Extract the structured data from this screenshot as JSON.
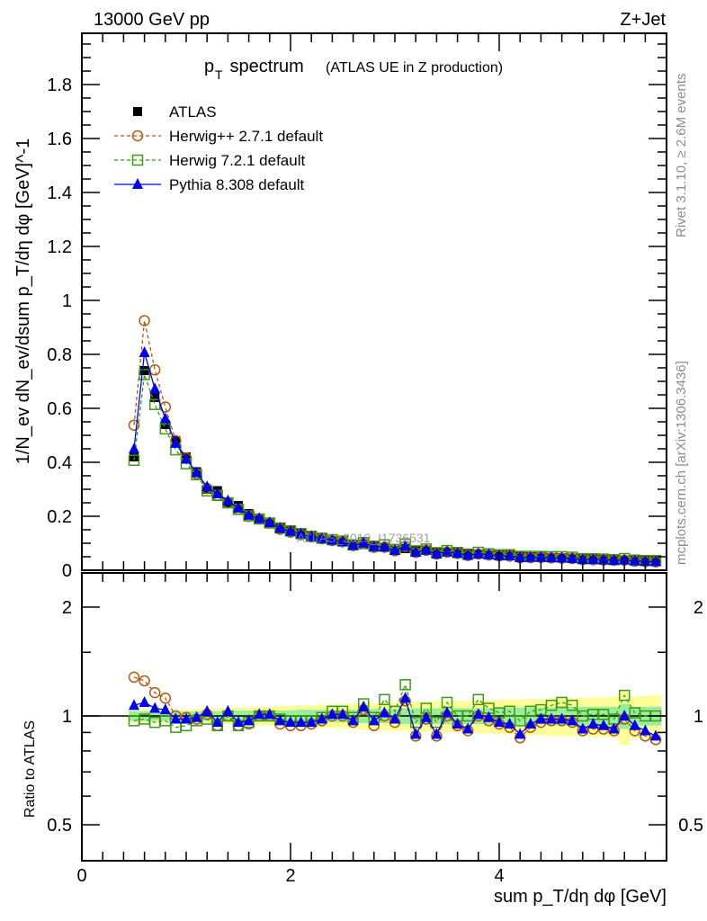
{
  "header": {
    "left": "13000 GeV pp",
    "right": "Z+Jet"
  },
  "side": {
    "rivet": "Rivet 3.1.10, ≥ 2.6M events",
    "mcplots": "mcplots.cern.ch [arXiv:1306.3436]"
  },
  "watermark": "ATLAS_2019_I1736531",
  "chart_data": [
    {
      "type": "scatter",
      "title_main": "p",
      "title_sub": "T",
      "title_rest": " spectrum",
      "title_extra": "(ATLAS UE in Z production)",
      "ylabel": "1/N_ev dN_ev/dsum p_T/dη dφ [GeV]^-1",
      "ylim": [
        0,
        1.99
      ],
      "yticks": [
        "0",
        "0.2",
        "0.4",
        "0.6",
        "0.8",
        "1",
        "1.2",
        "1.4",
        "1.6",
        "1.8"
      ],
      "ytick_values": [
        0,
        0.2,
        0.4,
        0.6,
        0.8,
        1.0,
        1.2,
        1.4,
        1.6,
        1.8
      ],
      "xlim": [
        0,
        5.6
      ],
      "legend": [
        {
          "name": "ATLAS",
          "color": "#000000",
          "marker": "square-filled",
          "style": "none"
        },
        {
          "name": "Herwig++ 2.7.1 default",
          "color": "#b35a0f",
          "marker": "circle-open",
          "style": "dashed"
        },
        {
          "name": "Herwig 7.2.1 default",
          "color": "#3c9a14",
          "marker": "square-open",
          "style": "dashed"
        },
        {
          "name": "Pythia 8.308 default",
          "color": "#0000ee",
          "marker": "triangle-filled",
          "style": "solid"
        }
      ],
      "x": [
        0.5,
        0.6,
        0.7,
        0.8,
        0.9,
        1.0,
        1.1,
        1.2,
        1.3,
        1.4,
        1.5,
        1.6,
        1.7,
        1.8,
        1.9,
        2.0,
        2.1,
        2.2,
        2.3,
        2.4,
        2.5,
        2.6,
        2.7,
        2.8,
        2.9,
        3.0,
        3.1,
        3.2,
        3.3,
        3.4,
        3.5,
        3.6,
        3.7,
        3.8,
        3.9,
        4.0,
        4.1,
        4.2,
        4.3,
        4.4,
        4.5,
        4.6,
        4.7,
        4.8,
        4.9,
        5.0,
        5.1,
        5.2,
        5.3,
        5.4,
        5.5
      ],
      "atlas": [
        0.42,
        0.74,
        0.64,
        0.54,
        0.48,
        0.42,
        0.365,
        0.3,
        0.295,
        0.25,
        0.24,
        0.21,
        0.19,
        0.175,
        0.16,
        0.15,
        0.14,
        0.13,
        0.12,
        0.11,
        0.105,
        0.095,
        0.095,
        0.09,
        0.085,
        0.075,
        0.08,
        0.075,
        0.075,
        0.068,
        0.067,
        0.066,
        0.06,
        0.06,
        0.058,
        0.056,
        0.056,
        0.053,
        0.05,
        0.049,
        0.047,
        0.046,
        0.045,
        0.043,
        0.042,
        0.041,
        0.04,
        0.038,
        0.037,
        0.036,
        0.036
      ]
    },
    {
      "type": "line",
      "ylabel": "Ratio to ATLAS",
      "xlabel": "sum p_T/dη dφ [GeV]",
      "yscale": "log",
      "ylim": [
        0.4,
        2.48
      ],
      "yticks": [
        "0.5",
        "1",
        "2"
      ],
      "ytick_values": [
        0.5,
        1,
        2
      ],
      "xticks": [
        "0",
        "2",
        "4"
      ],
      "xtick_values": [
        0,
        2,
        4
      ],
      "series": [
        {
          "name": "Herwig++ 2.7.1 default",
          "values": [
            1.28,
            1.25,
            1.16,
            1.12,
            1.0,
            0.99,
            0.98,
            1.01,
            0.94,
            1.0,
            0.94,
            0.95,
            1.0,
            1.0,
            0.95,
            0.94,
            0.94,
            0.95,
            0.97,
            1.0,
            1.0,
            0.96,
            1.04,
            0.94,
            1.0,
            0.96,
            1.1,
            0.88,
            0.98,
            0.88,
            1.0,
            0.94,
            0.91,
            1.0,
            0.97,
            0.95,
            0.93,
            0.87,
            0.93,
            0.96,
            0.97,
            0.97,
            0.96,
            0.91,
            0.92,
            0.92,
            0.91,
            0.98,
            0.91,
            0.88,
            0.86
          ]
        },
        {
          "name": "Herwig 7.2.1 default",
          "values": [
            0.97,
            0.98,
            0.96,
            0.97,
            0.93,
            0.94,
            0.97,
            0.98,
            0.94,
            1.0,
            0.94,
            0.96,
            1.0,
            1.0,
            0.98,
            0.97,
            0.97,
            0.97,
            0.99,
            1.03,
            1.03,
            0.99,
            1.08,
            0.99,
            1.11,
            1.03,
            1.22,
            0.96,
            1.05,
            0.96,
            1.09,
            1.0,
            1.0,
            1.11,
            1.05,
            1.02,
            1.03,
            0.97,
            1.03,
            1.04,
            1.07,
            1.09,
            1.07,
            1.0,
            1.01,
            1.01,
            0.98,
            1.14,
            1.02,
            1.0,
            1.0
          ]
        },
        {
          "name": "Pythia 8.308 default",
          "values": [
            1.07,
            1.09,
            1.05,
            1.04,
            0.98,
            0.98,
            0.99,
            1.03,
            0.96,
            1.03,
            0.96,
            0.97,
            1.01,
            1.01,
            0.97,
            0.96,
            0.96,
            0.96,
            0.98,
            1.01,
            1.01,
            0.97,
            1.06,
            0.97,
            1.02,
            0.98,
            1.12,
            0.89,
            0.99,
            0.89,
            1.02,
            0.95,
            0.92,
            1.01,
            0.99,
            0.96,
            0.95,
            0.89,
            0.95,
            0.98,
            0.98,
            0.98,
            0.97,
            0.92,
            0.95,
            0.94,
            0.92,
            1.0,
            0.94,
            0.91,
            0.88
          ]
        }
      ],
      "band_stat": [
        0.03,
        0.03,
        0.03,
        0.03,
        0.03,
        0.03,
        0.03,
        0.03,
        0.03,
        0.035,
        0.035,
        0.035,
        0.035,
        0.035,
        0.035,
        0.035,
        0.04,
        0.04,
        0.04,
        0.04,
        0.04,
        0.04,
        0.045,
        0.045,
        0.045,
        0.045,
        0.05,
        0.05,
        0.05,
        0.05,
        0.05,
        0.05,
        0.05,
        0.05,
        0.05,
        0.055,
        0.055,
        0.055,
        0.055,
        0.055,
        0.055,
        0.055,
        0.06,
        0.06,
        0.06,
        0.06,
        0.06,
        0.08,
        0.06,
        0.06,
        0.06
      ],
      "band_total": [
        0.04,
        0.04,
        0.04,
        0.04,
        0.04,
        0.04,
        0.045,
        0.05,
        0.05,
        0.05,
        0.055,
        0.055,
        0.06,
        0.06,
        0.065,
        0.065,
        0.07,
        0.07,
        0.075,
        0.075,
        0.08,
        0.08,
        0.085,
        0.085,
        0.09,
        0.09,
        0.09,
        0.095,
        0.095,
        0.1,
        0.1,
        0.1,
        0.1,
        0.105,
        0.105,
        0.11,
        0.11,
        0.11,
        0.115,
        0.115,
        0.12,
        0.12,
        0.12,
        0.12,
        0.125,
        0.125,
        0.13,
        0.17,
        0.13,
        0.135,
        0.14
      ]
    }
  ]
}
